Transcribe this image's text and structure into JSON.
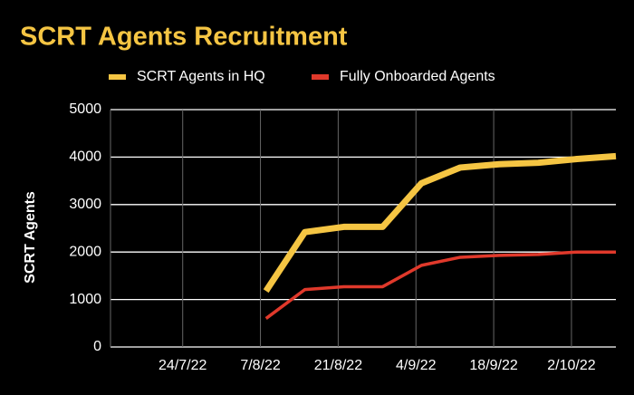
{
  "chart_data": {
    "type": "line",
    "title": "SCRT Agents Recruitment",
    "y_label": "SCRT Agents",
    "x": [
      "2022-08-08",
      "2022-08-15",
      "2022-08-22",
      "2022-08-29",
      "2022-09-05",
      "2022-09-12",
      "2022-09-19",
      "2022-09-26",
      "2022-10-03",
      "2022-10-10"
    ],
    "series": [
      {
        "name": "SCRT Agents in HQ",
        "color": "#f5c543",
        "values": [
          1180,
          2420,
          2530,
          2530,
          3450,
          3780,
          3850,
          3880,
          3960,
          4020
        ]
      },
      {
        "name": "Fully Onboarded Agents",
        "color": "#e0392b",
        "values": [
          600,
          1210,
          1270,
          1270,
          1720,
          1890,
          1930,
          1950,
          2000,
          2000
        ]
      }
    ],
    "xlim": [
      "2022-07-11",
      "2022-10-10"
    ],
    "xticks": [
      {
        "value": "2022-07-24",
        "label": "24/7/22"
      },
      {
        "value": "2022-08-07",
        "label": "7/8/22"
      },
      {
        "value": "2022-08-21",
        "label": "21/8/22"
      },
      {
        "value": "2022-09-04",
        "label": "4/9/22"
      },
      {
        "value": "2022-09-18",
        "label": "18/9/22"
      },
      {
        "value": "2022-10-02",
        "label": "2/10/22"
      }
    ],
    "ylim": [
      0,
      5000
    ],
    "yticks": [
      0,
      1000,
      2000,
      3000,
      4000,
      5000
    ],
    "grid": true,
    "legend": "top"
  }
}
